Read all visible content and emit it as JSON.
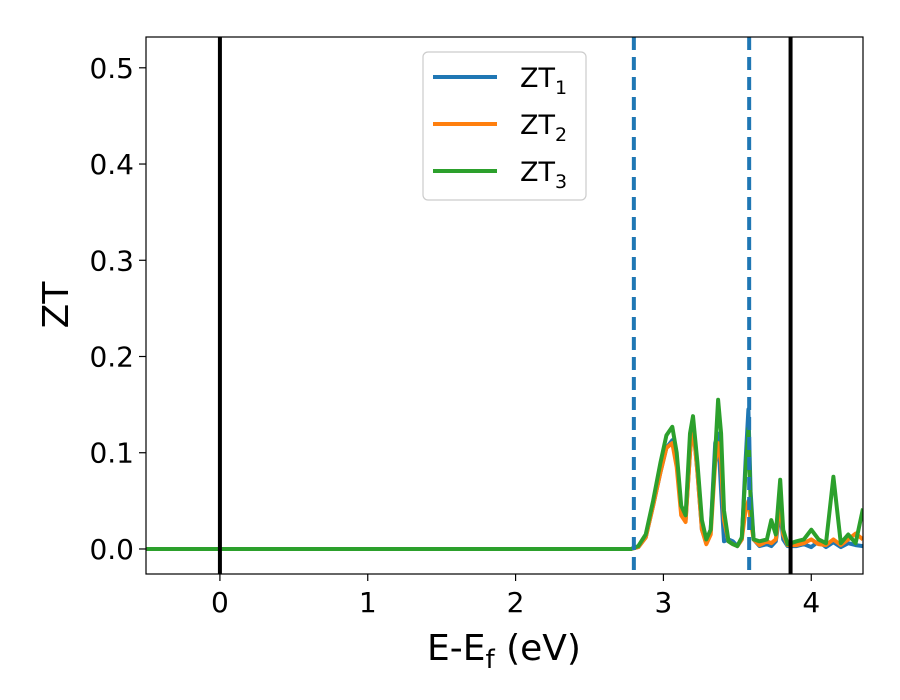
{
  "chart_data": {
    "type": "line",
    "title": "",
    "xlabel": "E-E",
    "xlabel_sub": "f",
    "xlabel_unit": " (eV)",
    "ylabel": "ZT",
    "xlim": [
      -0.5,
      4.35
    ],
    "ylim": [
      -0.026,
      0.532
    ],
    "x_ticks": [
      0,
      1,
      2,
      3,
      4
    ],
    "x_tick_labels": [
      "0",
      "1",
      "2",
      "3",
      "4"
    ],
    "y_ticks": [
      0.0,
      0.1,
      0.2,
      0.3,
      0.4,
      0.5
    ],
    "y_tick_labels": [
      "0.0",
      "0.1",
      "0.2",
      "0.3",
      "0.4",
      "0.5"
    ],
    "grid": false,
    "legend_position": "top-center",
    "vertical_lines": [
      {
        "x": 0.0,
        "style": "solid",
        "color": "#000000"
      },
      {
        "x": 2.8,
        "style": "dashed",
        "color": "#1f77b4"
      },
      {
        "x": 3.58,
        "style": "dashed",
        "color": "#1f77b4"
      },
      {
        "x": 3.86,
        "style": "solid",
        "color": "#000000"
      }
    ],
    "series": [
      {
        "name": "ZT",
        "name_sub": "1",
        "color": "#1f77b4",
        "points": [
          [
            -0.5,
            0
          ],
          [
            2.78,
            0
          ],
          [
            2.83,
            0.002
          ],
          [
            2.88,
            0.012
          ],
          [
            2.93,
            0.045
          ],
          [
            2.98,
            0.08
          ],
          [
            3.02,
            0.105
          ],
          [
            3.06,
            0.113
          ],
          [
            3.09,
            0.09
          ],
          [
            3.12,
            0.04
          ],
          [
            3.15,
            0.03
          ],
          [
            3.18,
            0.1
          ],
          [
            3.2,
            0.13
          ],
          [
            3.23,
            0.08
          ],
          [
            3.26,
            0.02
          ],
          [
            3.29,
            0.007
          ],
          [
            3.32,
            0.02
          ],
          [
            3.35,
            0.11
          ],
          [
            3.37,
            0.12
          ],
          [
            3.39,
            0.06
          ],
          [
            3.41,
            0.008
          ],
          [
            3.44,
            0.01
          ],
          [
            3.47,
            0.008
          ],
          [
            3.5,
            0.003
          ],
          [
            3.53,
            0.01
          ],
          [
            3.555,
            0.09
          ],
          [
            3.575,
            0.145
          ],
          [
            3.59,
            0.06
          ],
          [
            3.61,
            0.01
          ],
          [
            3.65,
            0.003
          ],
          [
            3.7,
            0.005
          ],
          [
            3.73,
            0.003
          ],
          [
            3.76,
            0.008
          ],
          [
            3.79,
            0.04
          ],
          [
            3.81,
            0.01
          ],
          [
            3.84,
            0.003
          ],
          [
            3.9,
            0.003
          ],
          [
            3.95,
            0.005
          ],
          [
            4.0,
            0.002
          ],
          [
            4.05,
            0.008
          ],
          [
            4.1,
            0.002
          ],
          [
            4.15,
            0.007
          ],
          [
            4.2,
            0.002
          ],
          [
            4.25,
            0.006
          ],
          [
            4.3,
            0.004
          ],
          [
            4.35,
            0.003
          ]
        ]
      },
      {
        "name": "ZT",
        "name_sub": "2",
        "color": "#ff7f0e",
        "points": [
          [
            -0.5,
            0
          ],
          [
            2.78,
            0
          ],
          [
            2.83,
            0.002
          ],
          [
            2.88,
            0.012
          ],
          [
            2.93,
            0.045
          ],
          [
            2.98,
            0.08
          ],
          [
            3.02,
            0.105
          ],
          [
            3.06,
            0.11
          ],
          [
            3.09,
            0.085
          ],
          [
            3.12,
            0.035
          ],
          [
            3.15,
            0.028
          ],
          [
            3.18,
            0.1
          ],
          [
            3.2,
            0.13
          ],
          [
            3.23,
            0.08
          ],
          [
            3.26,
            0.02
          ],
          [
            3.29,
            0.005
          ],
          [
            3.32,
            0.015
          ],
          [
            3.35,
            0.09
          ],
          [
            3.37,
            0.11
          ],
          [
            3.39,
            0.09
          ],
          [
            3.41,
            0.03
          ],
          [
            3.44,
            0.008
          ],
          [
            3.47,
            0.005
          ],
          [
            3.5,
            0.003
          ],
          [
            3.53,
            0.01
          ],
          [
            3.555,
            0.04
          ],
          [
            3.575,
            0.05
          ],
          [
            3.59,
            0.03
          ],
          [
            3.61,
            0.01
          ],
          [
            3.65,
            0.004
          ],
          [
            3.7,
            0.008
          ],
          [
            3.73,
            0.006
          ],
          [
            3.76,
            0.01
          ],
          [
            3.79,
            0.05
          ],
          [
            3.81,
            0.015
          ],
          [
            3.84,
            0.004
          ],
          [
            3.9,
            0.004
          ],
          [
            3.95,
            0.006
          ],
          [
            4.0,
            0.01
          ],
          [
            4.05,
            0.005
          ],
          [
            4.1,
            0.004
          ],
          [
            4.15,
            0.01
          ],
          [
            4.2,
            0.004
          ],
          [
            4.25,
            0.01
          ],
          [
            4.3,
            0.016
          ],
          [
            4.35,
            0.01
          ]
        ]
      },
      {
        "name": "ZT",
        "name_sub": "3",
        "color": "#2ca02c",
        "points": [
          [
            -0.5,
            0
          ],
          [
            2.78,
            0
          ],
          [
            2.83,
            0.003
          ],
          [
            2.88,
            0.015
          ],
          [
            2.93,
            0.05
          ],
          [
            2.98,
            0.09
          ],
          [
            3.02,
            0.118
          ],
          [
            3.06,
            0.127
          ],
          [
            3.09,
            0.1
          ],
          [
            3.12,
            0.045
          ],
          [
            3.15,
            0.035
          ],
          [
            3.18,
            0.12
          ],
          [
            3.2,
            0.138
          ],
          [
            3.23,
            0.09
          ],
          [
            3.26,
            0.03
          ],
          [
            3.29,
            0.01
          ],
          [
            3.32,
            0.02
          ],
          [
            3.35,
            0.1
          ],
          [
            3.37,
            0.155
          ],
          [
            3.39,
            0.12
          ],
          [
            3.41,
            0.04
          ],
          [
            3.44,
            0.008
          ],
          [
            3.47,
            0.005
          ],
          [
            3.5,
            0.003
          ],
          [
            3.53,
            0.012
          ],
          [
            3.555,
            0.08
          ],
          [
            3.575,
            0.125
          ],
          [
            3.59,
            0.05
          ],
          [
            3.61,
            0.01
          ],
          [
            3.65,
            0.008
          ],
          [
            3.7,
            0.01
          ],
          [
            3.73,
            0.03
          ],
          [
            3.76,
            0.015
          ],
          [
            3.79,
            0.072
          ],
          [
            3.81,
            0.02
          ],
          [
            3.84,
            0.005
          ],
          [
            3.9,
            0.008
          ],
          [
            3.95,
            0.01
          ],
          [
            4.0,
            0.02
          ],
          [
            4.05,
            0.01
          ],
          [
            4.1,
            0.006
          ],
          [
            4.15,
            0.075
          ],
          [
            4.2,
            0.006
          ],
          [
            4.25,
            0.015
          ],
          [
            4.3,
            0.006
          ],
          [
            4.35,
            0.042
          ]
        ]
      }
    ]
  }
}
